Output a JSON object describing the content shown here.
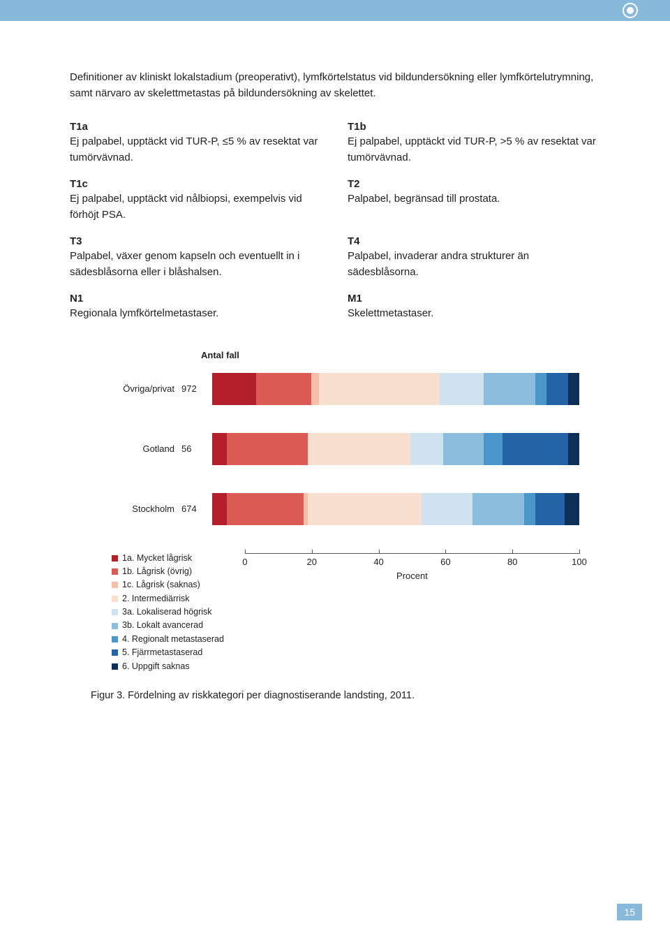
{
  "page_number": "15",
  "intro": "Definitioner av kliniskt lokalstadium (preoperativt), lymfkörtelstatus vid bildundersökning eller lymfkörtelutrymning, samt närvaro av skelettmetastas på bildundersökning av skelettet.",
  "definitions": [
    {
      "title": "T1a",
      "body": "Ej palpabel, upptäckt vid TUR-P, ≤5 % av resektat var tumörvävnad."
    },
    {
      "title": "T1b",
      "body": "Ej palpabel, upptäckt vid TUR-P, >5 % av resektat var tumörvävnad."
    },
    {
      "title": "T1c",
      "body": "Ej palpabel, upptäckt vid nålbiopsi, exempelvis vid förhöjt PSA."
    },
    {
      "title": "T2",
      "body": "Palpabel, begränsad till prostata."
    },
    {
      "title": "T3",
      "body": "Palpabel, växer genom kapseln och eventuellt in i sädesblåsorna eller i blåshalsen."
    },
    {
      "title": "T4",
      "body": "Palpabel, invaderar andra strukturer än sädesblåsorna."
    },
    {
      "title": "N1",
      "body": "Regionala lymfkörtelmetastaser."
    },
    {
      "title": "M1",
      "body": "Skelettmetastaser."
    }
  ],
  "chart": {
    "header": "Antal fall",
    "axis_title": "Procent",
    "xticks": [
      0,
      20,
      40,
      60,
      80,
      100
    ],
    "legend": [
      {
        "label": "1a. Mycket lågrisk",
        "color": "#b3202c"
      },
      {
        "label": "1b. Lågrisk (övrig)",
        "color": "#db5b54"
      },
      {
        "label": "1c. Lågrisk (saknas)",
        "color": "#f6bfa9"
      },
      {
        "label": "2. Intermediärrisk",
        "color": "#f9dfcf"
      },
      {
        "label": "3a. Lokaliserad högrisk",
        "color": "#cfe2ef"
      },
      {
        "label": "3b. Lokalt avancerad",
        "color": "#8cbddc"
      },
      {
        "label": "4. Regionalt metastaserad",
        "color": "#4a95c9"
      },
      {
        "label": "5. Fjärrmetastaserad",
        "color": "#2363a6"
      },
      {
        "label": "6. Uppgift saknas",
        "color": "#0e2f58"
      }
    ],
    "rows": [
      {
        "label": "Övriga/privat",
        "n": "972",
        "segments": [
          {
            "color": "#b3202c",
            "pct": 12
          },
          {
            "color": "#db5b54",
            "pct": 15
          },
          {
            "color": "#f6bfa9",
            "pct": 2
          },
          {
            "color": "#f9dfcf",
            "pct": 33
          },
          {
            "color": "#cfe2ef",
            "pct": 12
          },
          {
            "color": "#8cbddc",
            "pct": 14
          },
          {
            "color": "#4a95c9",
            "pct": 3
          },
          {
            "color": "#2363a6",
            "pct": 6
          },
          {
            "color": "#0e2f58",
            "pct": 3
          }
        ]
      },
      {
        "label": "Gotland",
        "n": "56",
        "segments": [
          {
            "color": "#b3202c",
            "pct": 4
          },
          {
            "color": "#db5b54",
            "pct": 22
          },
          {
            "color": "#f6bfa9",
            "pct": 0
          },
          {
            "color": "#f9dfcf",
            "pct": 28
          },
          {
            "color": "#cfe2ef",
            "pct": 9
          },
          {
            "color": "#8cbddc",
            "pct": 11
          },
          {
            "color": "#4a95c9",
            "pct": 5
          },
          {
            "color": "#2363a6",
            "pct": 18
          },
          {
            "color": "#0e2f58",
            "pct": 3
          }
        ]
      },
      {
        "label": "Stockholm",
        "n": "674",
        "segments": [
          {
            "color": "#b3202c",
            "pct": 4
          },
          {
            "color": "#db5b54",
            "pct": 21
          },
          {
            "color": "#f6bfa9",
            "pct": 1
          },
          {
            "color": "#f9dfcf",
            "pct": 31
          },
          {
            "color": "#cfe2ef",
            "pct": 14
          },
          {
            "color": "#8cbddc",
            "pct": 14
          },
          {
            "color": "#4a95c9",
            "pct": 3
          },
          {
            "color": "#2363a6",
            "pct": 8
          },
          {
            "color": "#0e2f58",
            "pct": 4
          }
        ]
      }
    ]
  },
  "caption": "Figur 3. Fördelning av riskkategori per diagnostiserande landsting, 2011."
}
